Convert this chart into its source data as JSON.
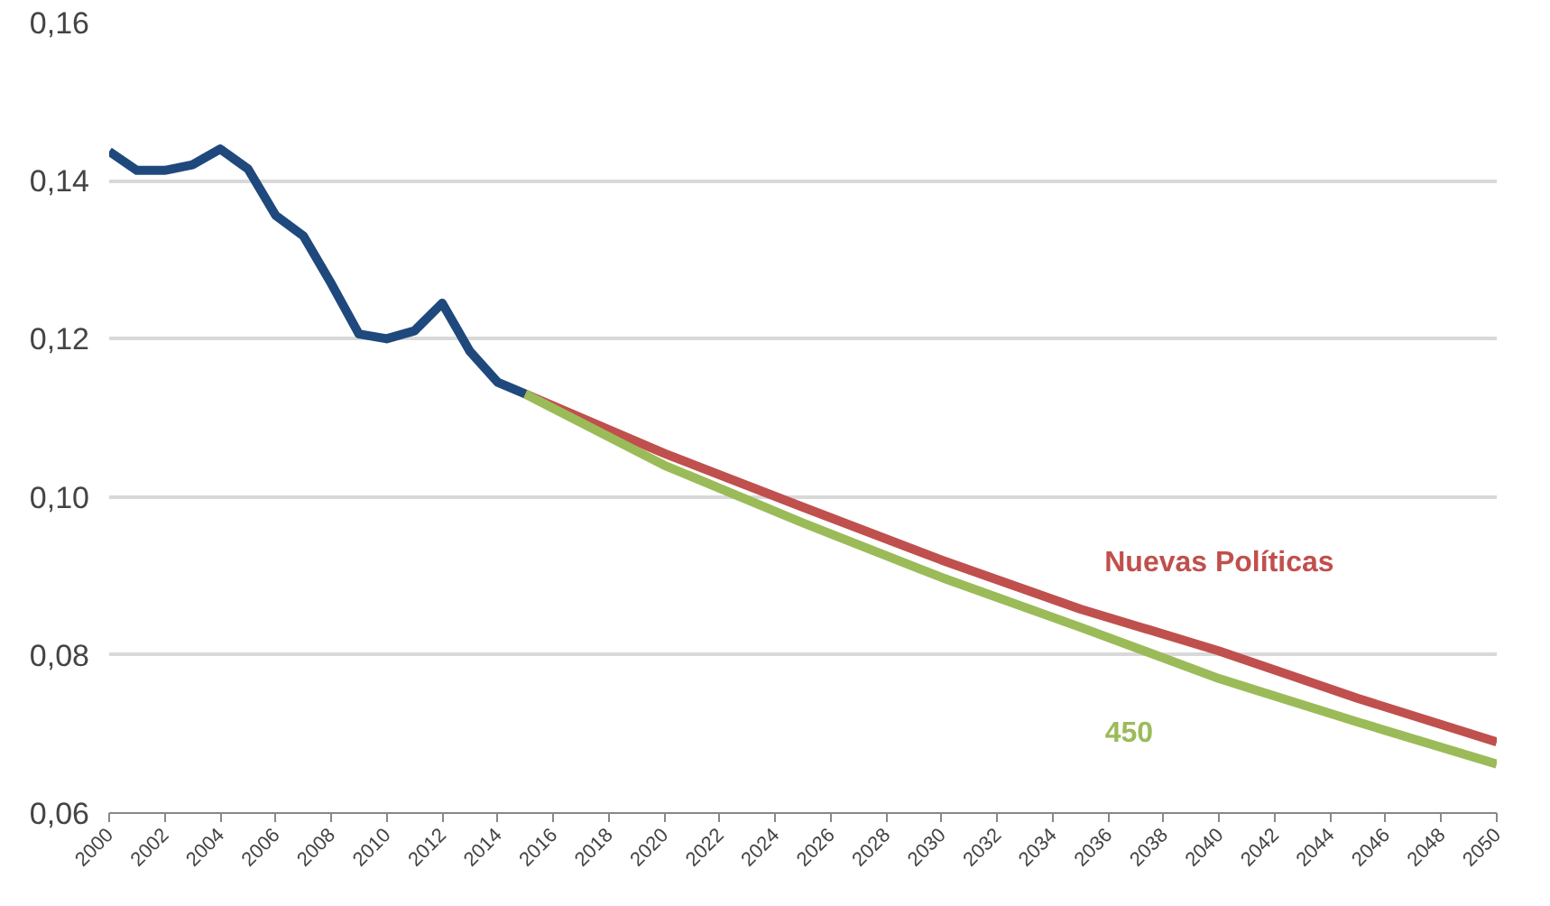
{
  "chart_data": {
    "type": "line",
    "x": [
      2000,
      2001,
      2002,
      2003,
      2004,
      2005,
      2006,
      2007,
      2008,
      2009,
      2010,
      2011,
      2012,
      2013,
      2014,
      2015
    ],
    "series": [
      {
        "color": "#1f497d",
        "values": [
          0.1437,
          0.1413,
          0.1413,
          0.142,
          0.144,
          0.1415,
          0.1356,
          0.133,
          0.127,
          0.1206,
          0.12,
          0.121,
          0.1245,
          0.1184,
          0.1145,
          0.113
        ]
      },
      {
        "name": "Nuevas Políticas",
        "color": "#c0504d",
        "x": [
          2015,
          2020,
          2025,
          2030,
          2035,
          2040,
          2045,
          2050
        ],
        "values": [
          0.113,
          0.1055,
          0.0987,
          0.092,
          0.0858,
          0.0805,
          0.0745,
          0.069
        ]
      },
      {
        "name": "450",
        "color": "#9bbb59",
        "x": [
          2015,
          2020,
          2025,
          2030,
          2035,
          2040,
          2045,
          2050
        ],
        "values": [
          0.113,
          0.104,
          0.0967,
          0.0898,
          0.0835,
          0.077,
          0.0715,
          0.0662
        ]
      }
    ],
    "xlim": [
      2000,
      2050
    ],
    "xticks": [
      2000,
      2002,
      2004,
      2006,
      2008,
      2010,
      2012,
      2014,
      2016,
      2018,
      2020,
      2022,
      2024,
      2026,
      2028,
      2030,
      2032,
      2034,
      2036,
      2038,
      2040,
      2042,
      2044,
      2046,
      2048,
      2050
    ],
    "ylim": [
      0.06,
      0.16
    ],
    "yticks": [
      {
        "value": 0.06,
        "label": "0,06"
      },
      {
        "value": 0.08,
        "label": "0,08"
      },
      {
        "value": 0.1,
        "label": "0,10"
      },
      {
        "value": 0.12,
        "label": "0,12"
      },
      {
        "value": 0.14,
        "label": "0,14"
      },
      {
        "value": 0.16,
        "label": "0,16"
      }
    ],
    "grid": "y",
    "legend": false
  }
}
